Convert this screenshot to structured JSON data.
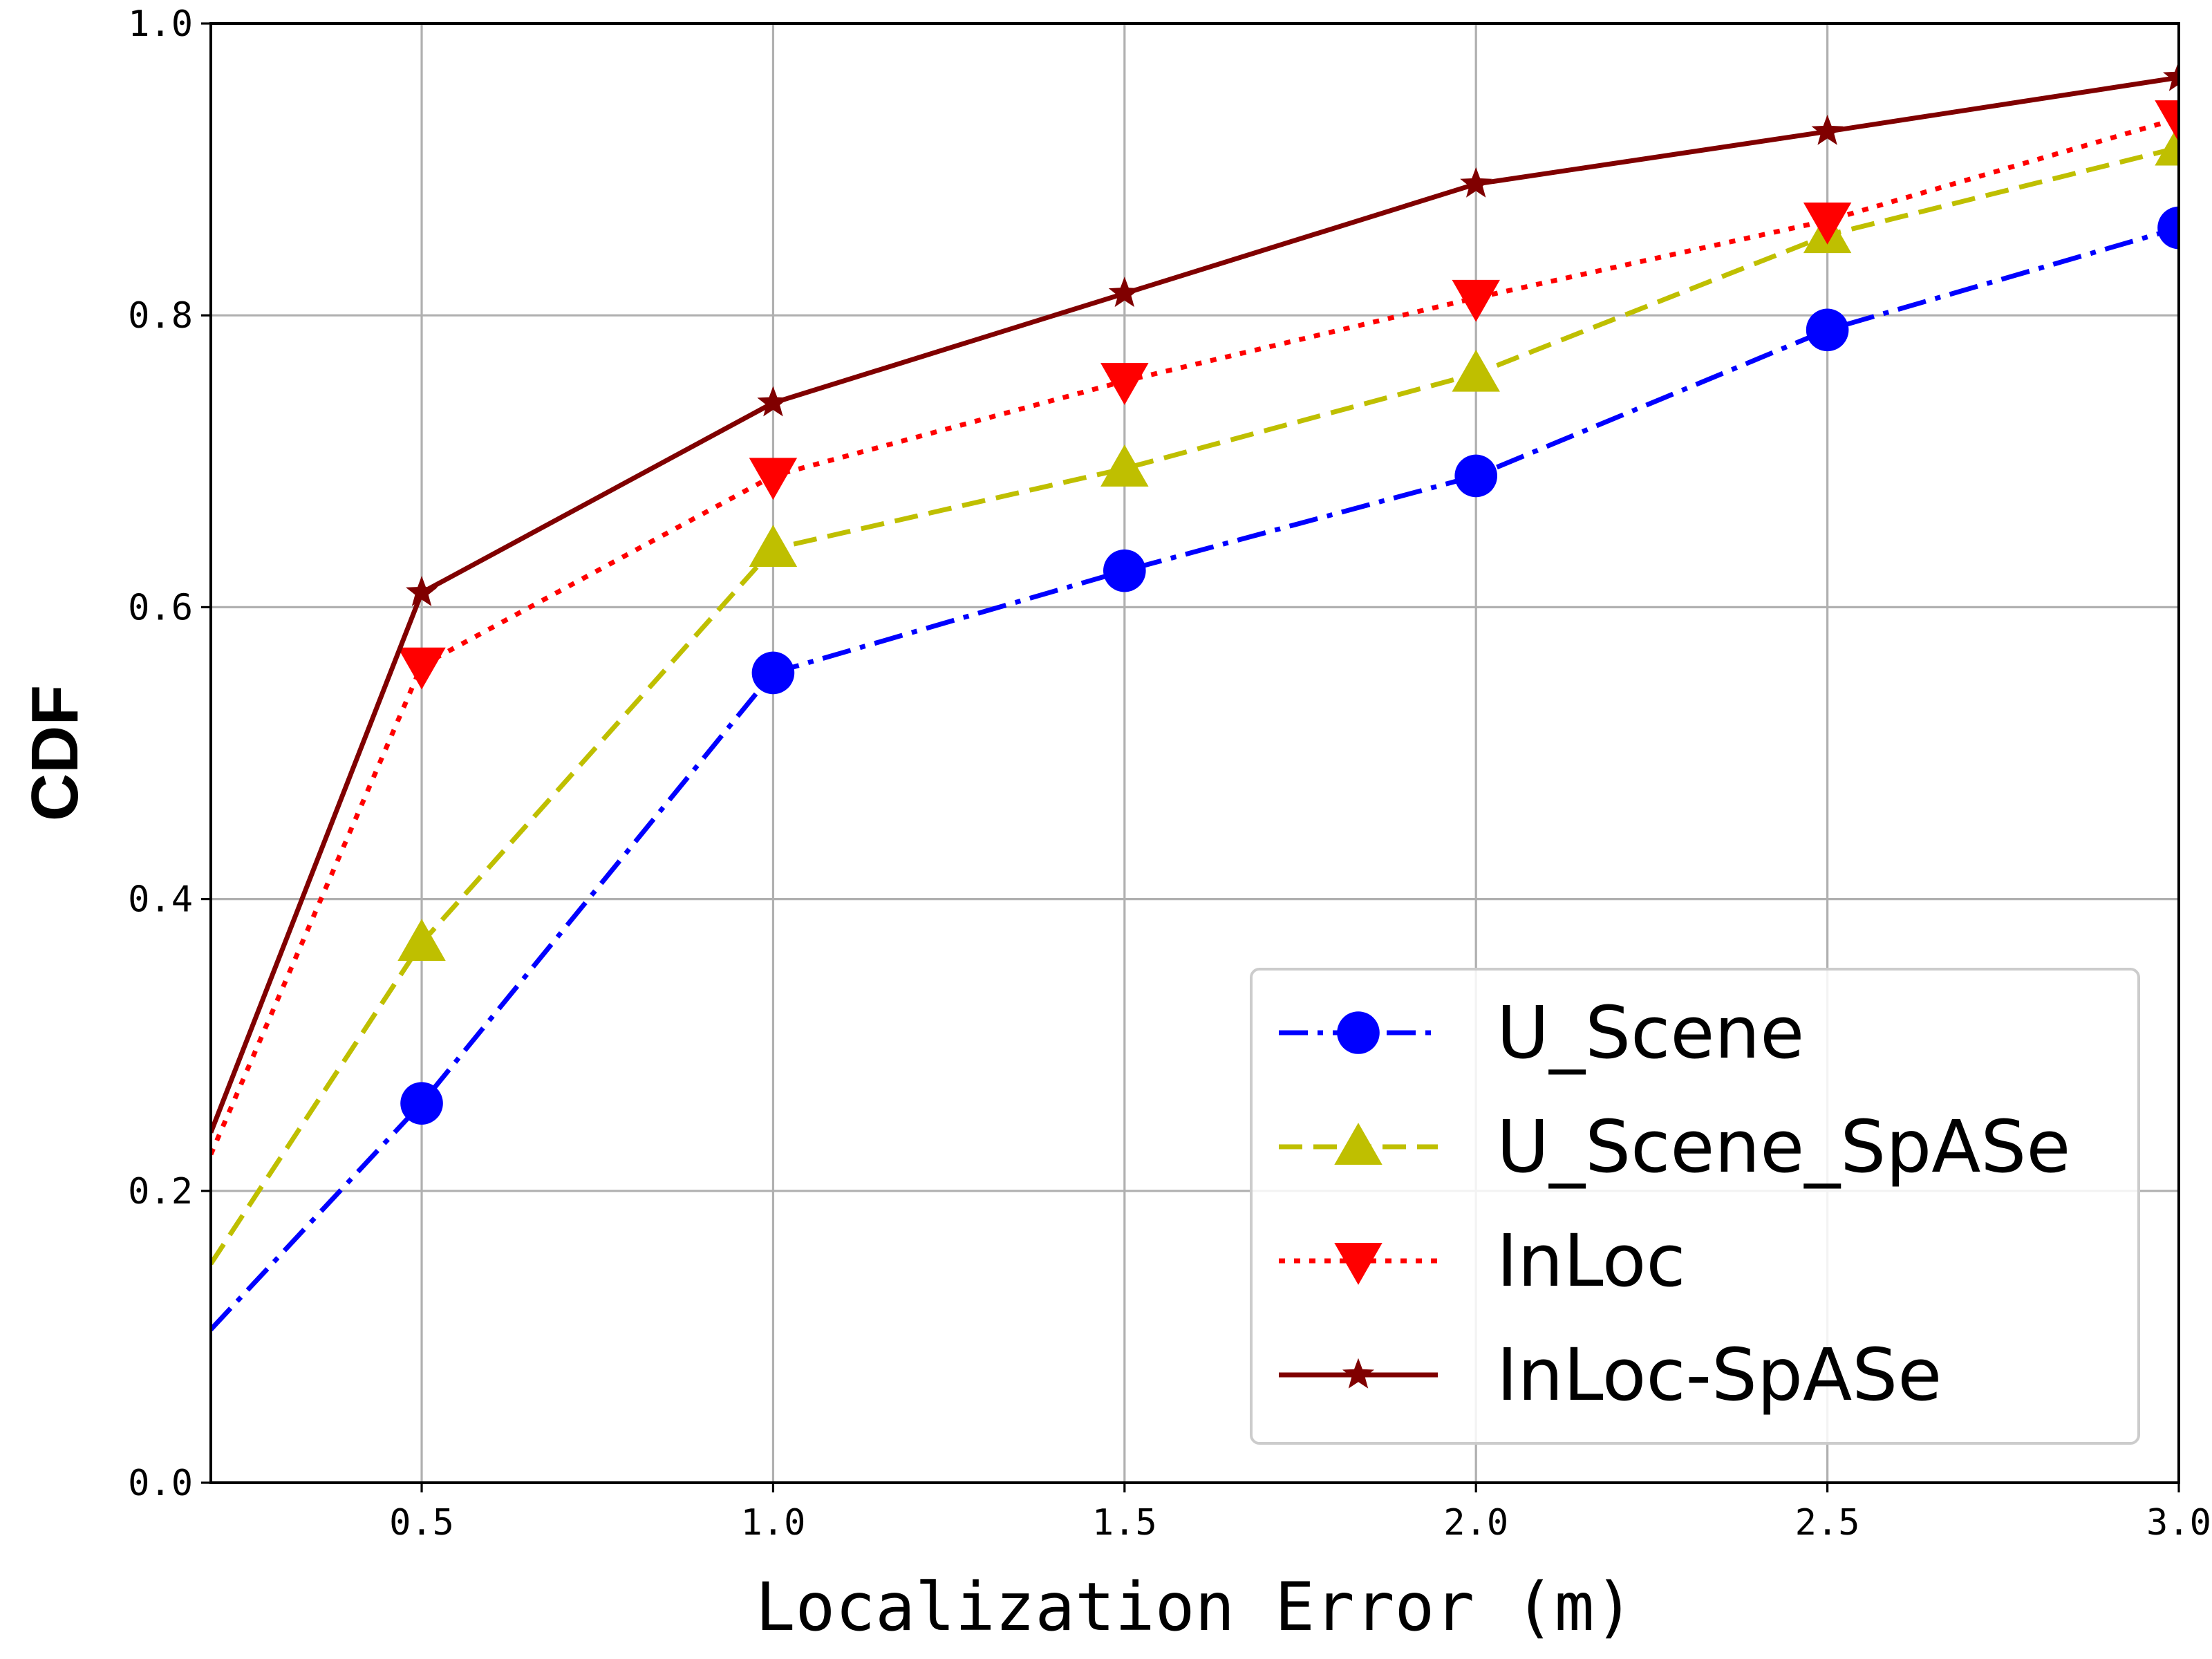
{
  "chart_data": {
    "type": "line",
    "xlabel": "Localization Error (m)",
    "ylabel": "CDF",
    "xlim": [
      0.2,
      3.0
    ],
    "ylim": [
      0.0,
      1.0
    ],
    "x_ticks": [
      "0.5",
      "1.0",
      "1.5",
      "2.0",
      "2.5",
      "3.0"
    ],
    "y_ticks": [
      "0.0",
      "0.2",
      "0.4",
      "0.6",
      "0.8",
      "1.0"
    ],
    "x_tick_values": [
      0.5,
      1.0,
      1.5,
      2.0,
      2.5,
      3.0
    ],
    "y_tick_values": [
      0.0,
      0.2,
      0.4,
      0.6,
      0.8,
      1.0
    ],
    "grid": true,
    "legend_position": "bottom-right",
    "x": [
      0.2,
      0.5,
      1.0,
      1.5,
      2.0,
      2.5,
      3.0
    ],
    "series": [
      {
        "name": "U_Scene",
        "values": [
          0.105,
          0.26,
          0.555,
          0.625,
          0.69,
          0.79,
          0.86
        ],
        "color": "#0000ff",
        "linestyle": "dashdot",
        "marker": "circle"
      },
      {
        "name": "U_Scene_SpASe",
        "values": [
          0.15,
          0.37,
          0.64,
          0.695,
          0.76,
          0.855,
          0.915
        ],
        "color": "#bfbf00",
        "linestyle": "dashed",
        "marker": "triangle-up"
      },
      {
        "name": "InLoc",
        "values": [
          0.225,
          0.56,
          0.69,
          0.755,
          0.812,
          0.865,
          0.935
        ],
        "color": "#ff0000",
        "linestyle": "dotted",
        "marker": "triangle-down"
      },
      {
        "name": "InLoc-SpASe",
        "values": [
          0.24,
          0.61,
          0.74,
          0.815,
          0.89,
          0.926,
          0.963
        ],
        "color": "#800000",
        "linestyle": "solid",
        "marker": "star"
      }
    ]
  }
}
